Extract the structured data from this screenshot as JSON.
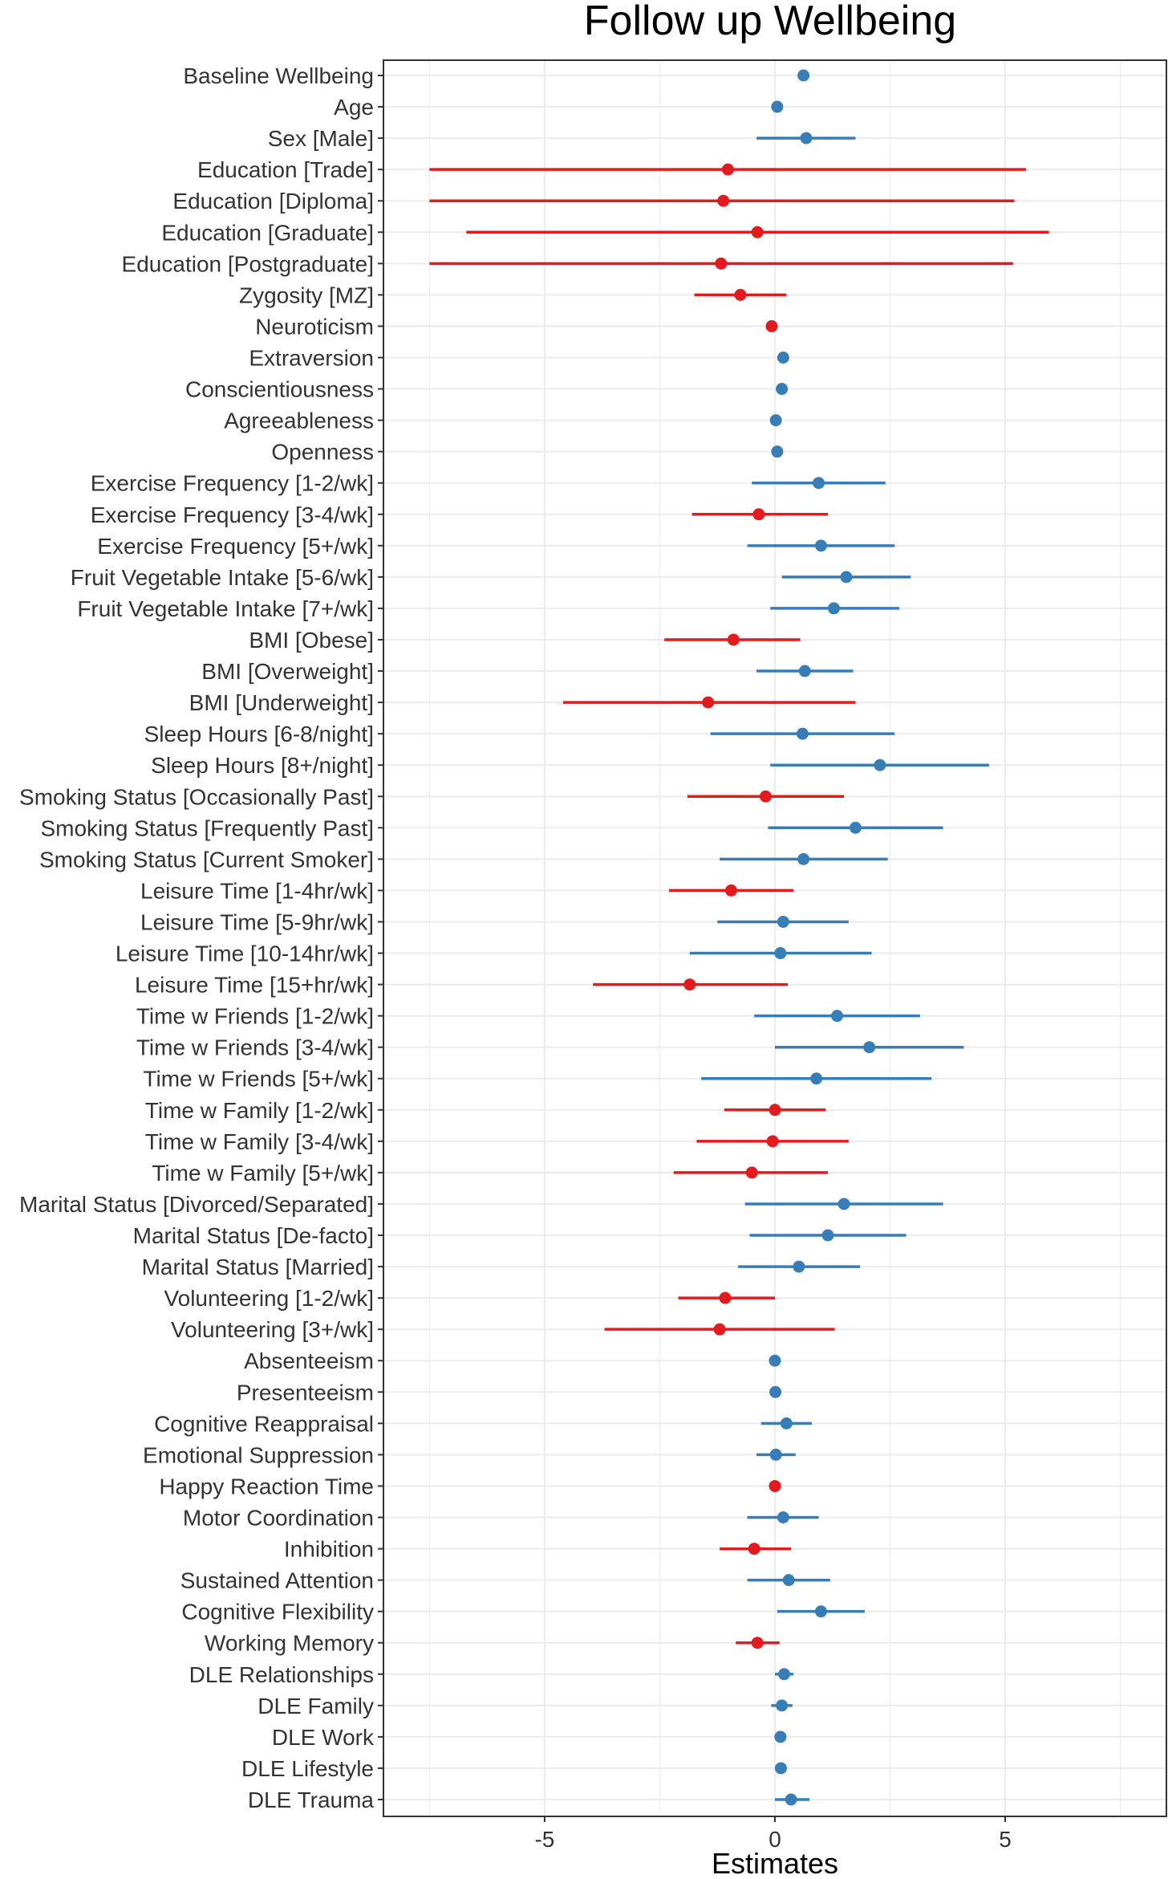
{
  "chart_data": {
    "type": "scatter",
    "subtype": "forest-plot",
    "title": "Follow up Wellbeing",
    "xlabel": "Estimates",
    "ylabel": "",
    "xlim": [
      -8.5,
      8.5
    ],
    "x_ticks": [
      -5,
      0,
      5
    ],
    "x_tick_labels": [
      "-5",
      "0",
      "5"
    ],
    "grid": true,
    "colors": {
      "positive": "#377EB8",
      "negative": "#E41A1C",
      "grid": "#EBEBEB",
      "axis": "#333333"
    },
    "rows": [
      {
        "label": "Baseline Wellbeing",
        "estimate": 0.62,
        "ci_low": 0.55,
        "ci_high": 0.69,
        "sign": "positive"
      },
      {
        "label": "Age",
        "estimate": 0.05,
        "ci_low": 0.02,
        "ci_high": 0.08,
        "sign": "positive"
      },
      {
        "label": "Sex [Male]",
        "estimate": 0.68,
        "ci_low": -0.4,
        "ci_high": 1.75,
        "sign": "positive"
      },
      {
        "label": "Education [Trade]",
        "estimate": -1.02,
        "ci_low": -7.5,
        "ci_high": 5.45,
        "sign": "negative"
      },
      {
        "label": "Education [Diploma]",
        "estimate": -1.12,
        "ci_low": -7.5,
        "ci_high": 5.2,
        "sign": "negative"
      },
      {
        "label": "Education [Graduate]",
        "estimate": -0.38,
        "ci_low": -6.7,
        "ci_high": 5.95,
        "sign": "negative"
      },
      {
        "label": "Education [Postgraduate]",
        "estimate": -1.17,
        "ci_low": -7.5,
        "ci_high": 5.17,
        "sign": "negative"
      },
      {
        "label": "Zygosity [MZ]",
        "estimate": -0.75,
        "ci_low": -1.75,
        "ci_high": 0.25,
        "sign": "negative"
      },
      {
        "label": "Neuroticism",
        "estimate": -0.07,
        "ci_low": -0.14,
        "ci_high": 0.0,
        "sign": "negative"
      },
      {
        "label": "Extraversion",
        "estimate": 0.18,
        "ci_low": 0.11,
        "ci_high": 0.25,
        "sign": "positive"
      },
      {
        "label": "Conscientiousness",
        "estimate": 0.15,
        "ci_low": 0.08,
        "ci_high": 0.22,
        "sign": "positive"
      },
      {
        "label": "Agreeableness",
        "estimate": 0.02,
        "ci_low": -0.05,
        "ci_high": 0.09,
        "sign": "positive"
      },
      {
        "label": "Openness",
        "estimate": 0.05,
        "ci_low": -0.02,
        "ci_high": 0.12,
        "sign": "positive"
      },
      {
        "label": "Exercise Frequency [1-2/wk]",
        "estimate": 0.95,
        "ci_low": -0.5,
        "ci_high": 2.4,
        "sign": "positive"
      },
      {
        "label": "Exercise Frequency [3-4/wk]",
        "estimate": -0.35,
        "ci_low": -1.8,
        "ci_high": 1.15,
        "sign": "negative"
      },
      {
        "label": "Exercise Frequency [5+/wk]",
        "estimate": 1.0,
        "ci_low": -0.6,
        "ci_high": 2.6,
        "sign": "positive"
      },
      {
        "label": "Fruit Vegetable Intake [5-6/wk]",
        "estimate": 1.55,
        "ci_low": 0.15,
        "ci_high": 2.95,
        "sign": "positive"
      },
      {
        "label": "Fruit Vegetable Intake [7+/wk]",
        "estimate": 1.28,
        "ci_low": -0.1,
        "ci_high": 2.7,
        "sign": "positive"
      },
      {
        "label": "BMI [Obese]",
        "estimate": -0.9,
        "ci_low": -2.4,
        "ci_high": 0.55,
        "sign": "negative"
      },
      {
        "label": "BMI [Overweight]",
        "estimate": 0.65,
        "ci_low": -0.4,
        "ci_high": 1.7,
        "sign": "positive"
      },
      {
        "label": "BMI [Underweight]",
        "estimate": -1.45,
        "ci_low": -4.6,
        "ci_high": 1.75,
        "sign": "negative"
      },
      {
        "label": "Sleep Hours [6-8/night]",
        "estimate": 0.6,
        "ci_low": -1.4,
        "ci_high": 2.6,
        "sign": "positive"
      },
      {
        "label": "Sleep Hours [8+/night]",
        "estimate": 2.28,
        "ci_low": -0.1,
        "ci_high": 4.65,
        "sign": "positive"
      },
      {
        "label": "Smoking Status [Occasionally Past]",
        "estimate": -0.2,
        "ci_low": -1.9,
        "ci_high": 1.5,
        "sign": "negative"
      },
      {
        "label": "Smoking Status [Frequently Past]",
        "estimate": 1.75,
        "ci_low": -0.15,
        "ci_high": 3.65,
        "sign": "positive"
      },
      {
        "label": "Smoking Status [Current Smoker]",
        "estimate": 0.62,
        "ci_low": -1.2,
        "ci_high": 2.45,
        "sign": "positive"
      },
      {
        "label": "Leisure Time [1-4hr/wk]",
        "estimate": -0.95,
        "ci_low": -2.3,
        "ci_high": 0.4,
        "sign": "negative"
      },
      {
        "label": "Leisure Time [5-9hr/wk]",
        "estimate": 0.18,
        "ci_low": -1.25,
        "ci_high": 1.6,
        "sign": "positive"
      },
      {
        "label": "Leisure Time [10-14hr/wk]",
        "estimate": 0.12,
        "ci_low": -1.85,
        "ci_high": 2.1,
        "sign": "positive"
      },
      {
        "label": "Leisure Time [15+hr/wk]",
        "estimate": -1.85,
        "ci_low": -3.95,
        "ci_high": 0.28,
        "sign": "negative"
      },
      {
        "label": "Time w Friends [1-2/wk]",
        "estimate": 1.35,
        "ci_low": -0.45,
        "ci_high": 3.15,
        "sign": "positive"
      },
      {
        "label": "Time w Friends [3-4/wk]",
        "estimate": 2.05,
        "ci_low": 0.0,
        "ci_high": 4.1,
        "sign": "positive"
      },
      {
        "label": "Time w Friends [5+/wk]",
        "estimate": 0.9,
        "ci_low": -1.6,
        "ci_high": 3.4,
        "sign": "positive"
      },
      {
        "label": "Time w Family [1-2/wk]",
        "estimate": 0.0,
        "ci_low": -1.1,
        "ci_high": 1.1,
        "sign": "negative"
      },
      {
        "label": "Time w Family [3-4/wk]",
        "estimate": -0.05,
        "ci_low": -1.7,
        "ci_high": 1.6,
        "sign": "negative"
      },
      {
        "label": "Time w Family [5+/wk]",
        "estimate": -0.5,
        "ci_low": -2.2,
        "ci_high": 1.15,
        "sign": "negative"
      },
      {
        "label": "Marital Status [Divorced/Separated]",
        "estimate": 1.5,
        "ci_low": -0.65,
        "ci_high": 3.65,
        "sign": "positive"
      },
      {
        "label": "Marital Status [De-facto]",
        "estimate": 1.15,
        "ci_low": -0.55,
        "ci_high": 2.85,
        "sign": "positive"
      },
      {
        "label": "Marital Status [Married]",
        "estimate": 0.52,
        "ci_low": -0.8,
        "ci_high": 1.85,
        "sign": "positive"
      },
      {
        "label": "Volunteering [1-2/wk]",
        "estimate": -1.08,
        "ci_low": -2.1,
        "ci_high": 0.0,
        "sign": "negative"
      },
      {
        "label": "Volunteering [3+/wk]",
        "estimate": -1.2,
        "ci_low": -3.7,
        "ci_high": 1.3,
        "sign": "negative"
      },
      {
        "label": "Absenteeism",
        "estimate": 0.0,
        "ci_low": -0.05,
        "ci_high": 0.05,
        "sign": "positive"
      },
      {
        "label": "Presenteeism",
        "estimate": 0.01,
        "ci_low": -0.05,
        "ci_high": 0.07,
        "sign": "positive"
      },
      {
        "label": "Cognitive Reappraisal",
        "estimate": 0.25,
        "ci_low": -0.3,
        "ci_high": 0.8,
        "sign": "positive"
      },
      {
        "label": "Emotional Suppression",
        "estimate": 0.02,
        "ci_low": -0.4,
        "ci_high": 0.45,
        "sign": "positive"
      },
      {
        "label": "Happy Reaction Time",
        "estimate": 0.0,
        "ci_low": -0.05,
        "ci_high": 0.05,
        "sign": "negative"
      },
      {
        "label": "Motor Coordination",
        "estimate": 0.18,
        "ci_low": -0.6,
        "ci_high": 0.95,
        "sign": "positive"
      },
      {
        "label": "Inhibition",
        "estimate": -0.45,
        "ci_low": -1.2,
        "ci_high": 0.35,
        "sign": "negative"
      },
      {
        "label": "Sustained Attention",
        "estimate": 0.3,
        "ci_low": -0.6,
        "ci_high": 1.2,
        "sign": "positive"
      },
      {
        "label": "Cognitive Flexibility",
        "estimate": 1.0,
        "ci_low": 0.05,
        "ci_high": 1.95,
        "sign": "positive"
      },
      {
        "label": "Working Memory",
        "estimate": -0.38,
        "ci_low": -0.85,
        "ci_high": 0.1,
        "sign": "negative"
      },
      {
        "label": "DLE Relationships",
        "estimate": 0.2,
        "ci_low": 0.0,
        "ci_high": 0.4,
        "sign": "positive"
      },
      {
        "label": "DLE Family",
        "estimate": 0.15,
        "ci_low": -0.08,
        "ci_high": 0.38,
        "sign": "positive"
      },
      {
        "label": "DLE Work",
        "estimate": 0.12,
        "ci_low": 0.05,
        "ci_high": 0.2,
        "sign": "positive"
      },
      {
        "label": "DLE Lifestyle",
        "estimate": 0.13,
        "ci_low": 0.02,
        "ci_high": 0.25,
        "sign": "positive"
      },
      {
        "label": "DLE Trauma",
        "estimate": 0.35,
        "ci_low": 0.0,
        "ci_high": 0.75,
        "sign": "positive"
      }
    ]
  }
}
